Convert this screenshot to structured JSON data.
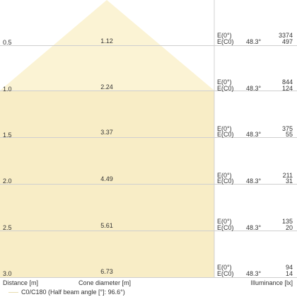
{
  "colors": {
    "cone_fill": "#fbf3d4",
    "rect_fill": "#f8edc6",
    "grid": "#d0d0d0",
    "text": "#333333"
  },
  "rows": [
    {
      "distance": "0.5",
      "cone_diameter": "1.12",
      "e0_label": "E(0°)",
      "ec0_label": "E(C0)",
      "angle": "48.3°",
      "e0": "3374",
      "ec0": "497"
    },
    {
      "distance": "1.0",
      "cone_diameter": "2.24",
      "e0_label": "E(0°)",
      "ec0_label": "E(C0)",
      "angle": "48.3°",
      "e0": "844",
      "ec0": "124"
    },
    {
      "distance": "1.5",
      "cone_diameter": "3.37",
      "e0_label": "E(0°)",
      "ec0_label": "E(C0)",
      "angle": "48.3°",
      "e0": "375",
      "ec0": "55"
    },
    {
      "distance": "2.0",
      "cone_diameter": "4.49",
      "e0_label": "E(0°)",
      "ec0_label": "E(C0)",
      "angle": "48.3°",
      "e0": "211",
      "ec0": "31"
    },
    {
      "distance": "2.5",
      "cone_diameter": "5.61",
      "e0_label": "E(0°)",
      "ec0_label": "E(C0)",
      "angle": "48.3°",
      "e0": "135",
      "ec0": "20"
    },
    {
      "distance": "3.0",
      "cone_diameter": "6.73",
      "e0_label": "E(0°)",
      "ec0_label": "E(C0)",
      "angle": "48.3°",
      "e0": "94",
      "ec0": "14"
    }
  ],
  "footer": {
    "distance_label": "Distance [m]",
    "cone_label": "Cone diameter [m]",
    "illuminance_label": "Illuminance [lx]",
    "legend": "C0/C180 (Half beam angle [°]: 96.6°)"
  }
}
